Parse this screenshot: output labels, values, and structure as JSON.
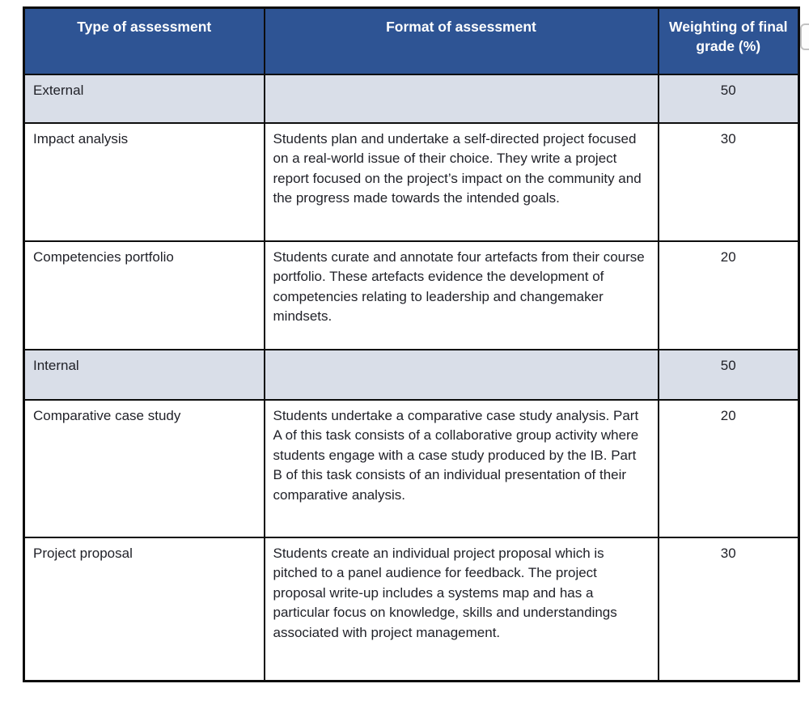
{
  "colors": {
    "header_bg": "#2e5494",
    "header_text": "#ffffff",
    "section_row_bg": "#d9dee8",
    "body_text": "#212229",
    "border": "#0d0d0d"
  },
  "table": {
    "columns": [
      "Type of assessment",
      "Format of assessment",
      "Weighting of final grade (%)"
    ],
    "rows": [
      {
        "type": "External",
        "format": "",
        "weighting": "50",
        "section": true
      },
      {
        "type": "Impact analysis",
        "format": "Students plan and undertake a self-directed project focused on a real-world issue of their choice. They write a project report focused on the project’s impact on the community and the progress made towards the intended goals.",
        "weighting": "30",
        "section": false
      },
      {
        "type": "Competencies portfolio",
        "format": "Students curate and annotate four artefacts from their course portfolio. These artefacts evidence the development of competencies relating to leadership and changemaker mindsets.",
        "weighting": "20",
        "section": false
      },
      {
        "type": "Internal",
        "format": "",
        "weighting": "50",
        "section": true
      },
      {
        "type": "Comparative case study",
        "format": "Students undertake a comparative case study analysis. Part A of this task consists of a collaborative group activity where students engage with a case study produced by the IB. Part B of this task consists of an individual presentation of their comparative analysis.",
        "weighting": "20",
        "section": false
      },
      {
        "type": "Project proposal",
        "format": "Students create an individual project proposal which is pitched to a panel audience for feedback. The project proposal write-up includes a systems map and has a particular focus on knowledge, skills and understandings associated with project management.",
        "weighting": "30",
        "section": false
      }
    ]
  }
}
